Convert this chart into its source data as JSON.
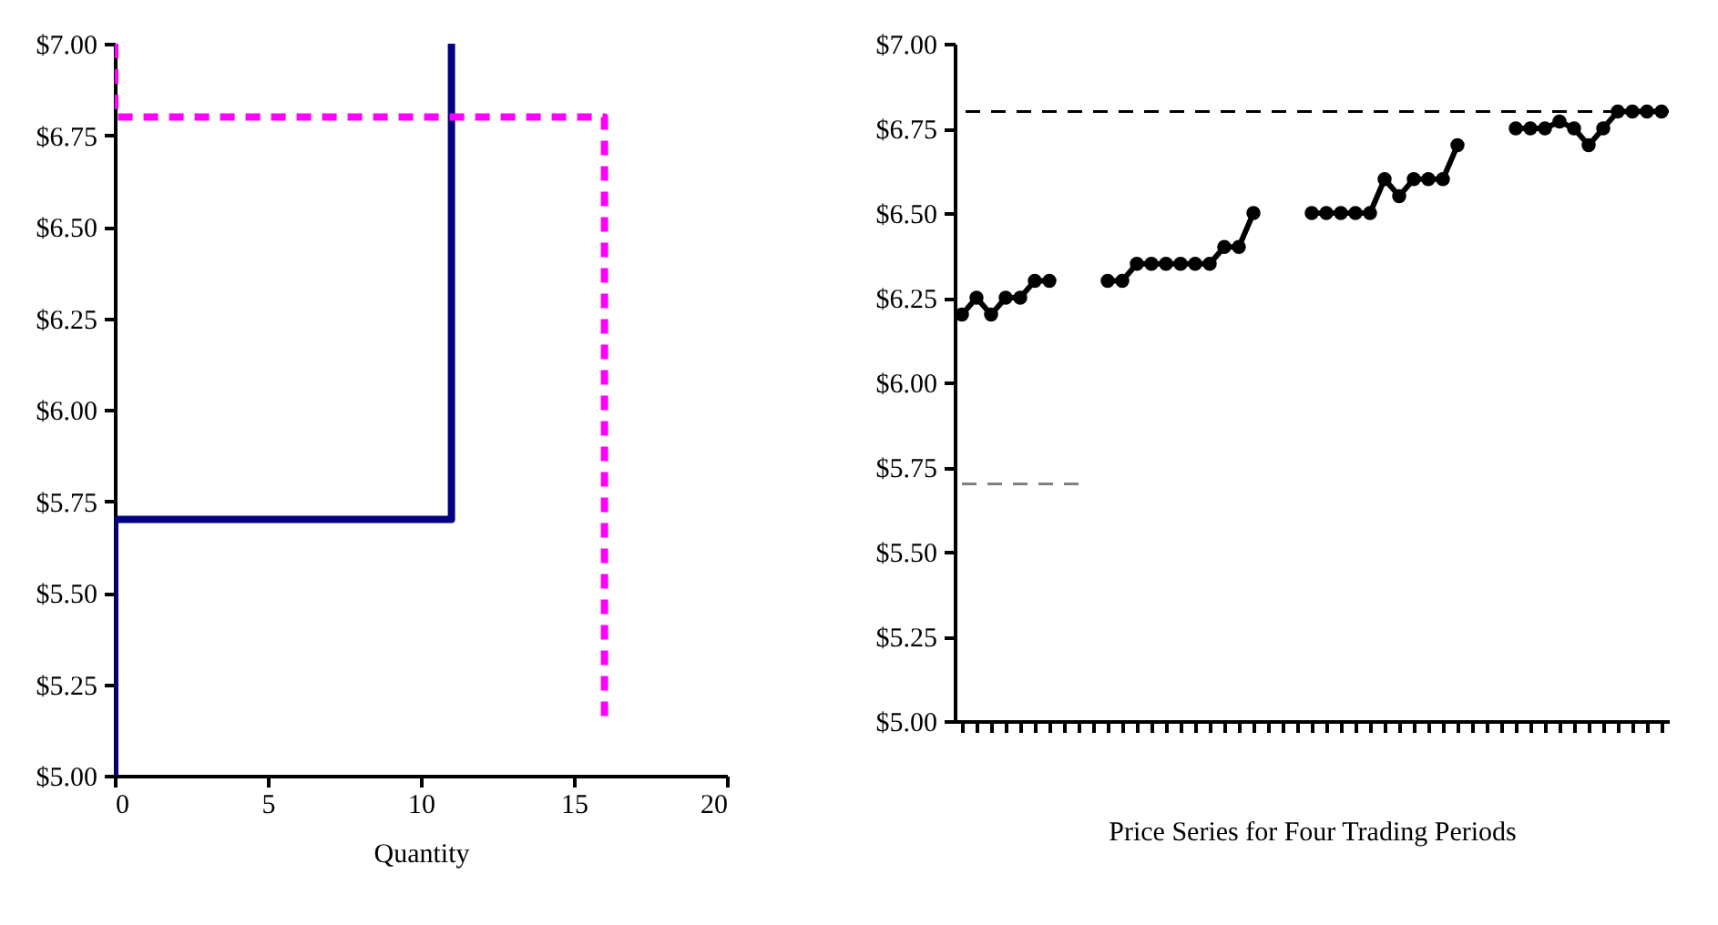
{
  "chart_data": [
    {
      "type": "line",
      "xlabel": "Quantity",
      "xlim": [
        0,
        20
      ],
      "xticks": [
        0,
        5,
        10,
        15,
        20
      ],
      "ylim": [
        5,
        7
      ],
      "yticks": [
        {
          "value": 5,
          "label": "$5.00"
        },
        {
          "value": 5.25,
          "label": "$5.25"
        },
        {
          "value": 5.5,
          "label": "$5.50"
        },
        {
          "value": 5.75,
          "label": "$5.75"
        },
        {
          "value": 6,
          "label": "$6.00"
        },
        {
          "value": 6.25,
          "label": "$6.25"
        },
        {
          "value": 6.5,
          "label": "$6.50"
        },
        {
          "value": 6.75,
          "label": "$6.75"
        },
        {
          "value": 7,
          "label": "$7.00"
        }
      ],
      "series": [
        {
          "color": "#000080",
          "x": [
            0,
            0,
            11,
            11
          ],
          "values": [
            5,
            5.7,
            5.7,
            7
          ],
          "line_style": "solid"
        },
        {
          "color": "#ff00ff",
          "x": [
            0,
            0,
            16,
            16
          ],
          "values": [
            7,
            6.8,
            6.8,
            5.15
          ],
          "line_style": "dashed"
        }
      ]
    },
    {
      "type": "line",
      "xlabel": "Price Series for Four Trading Periods",
      "marker": "circle",
      "categories": [
        null,
        null,
        null,
        null,
        null,
        null,
        null,
        null,
        null,
        null,
        null,
        null,
        null,
        null,
        null,
        null,
        null,
        null,
        null,
        null,
        null,
        null,
        null,
        null,
        null,
        null,
        null,
        null,
        null,
        null,
        null,
        null,
        null,
        null,
        null,
        null,
        null,
        null,
        null,
        null,
        null,
        null,
        null,
        null,
        null,
        null,
        null,
        null,
        null
      ],
      "ylim": [
        5,
        7
      ],
      "yticks": [
        {
          "value": 5,
          "label": "$5.00"
        },
        {
          "value": 5.25,
          "label": "$5.25"
        },
        {
          "value": 5.5,
          "label": "$5.50"
        },
        {
          "value": 5.75,
          "label": "$5.75"
        },
        {
          "value": 6,
          "label": "$6.00"
        },
        {
          "value": 6.25,
          "label": "$6.25"
        },
        {
          "value": 6.5,
          "label": "$6.50"
        },
        {
          "value": 6.75,
          "label": "$6.75"
        },
        {
          "value": 7,
          "label": "$7.00"
        }
      ],
      "ref_lines": [
        {
          "axis": "y",
          "value": 6.8,
          "color": "#000000",
          "line_style": "dashed"
        }
      ],
      "series": [
        {
          "color": "#000000",
          "values": [
            6.2,
            6.25,
            6.2,
            6.25,
            6.25,
            6.3,
            6.3,
            null,
            null,
            null,
            6.3,
            6.3,
            6.35,
            6.35,
            6.35,
            6.35,
            6.35,
            6.35,
            6.4,
            6.4,
            6.5,
            null,
            null,
            null,
            6.5,
            6.5,
            6.5,
            6.5,
            6.5,
            6.6,
            6.55,
            6.6,
            6.6,
            6.6,
            6.7,
            null,
            null,
            null,
            6.75,
            6.75,
            6.75,
            6.77,
            6.75,
            6.7,
            6.75,
            6.8,
            6.8,
            6.8,
            6.8
          ]
        },
        {
          "color": "#808080",
          "marker": "none",
          "line_style": "dashed",
          "values": [
            5.7,
            5.7,
            5.7,
            5.7,
            5.7,
            5.7,
            5.7,
            5.7,
            5.7,
            null,
            null,
            null,
            null,
            null,
            null,
            null,
            null,
            null,
            null,
            null,
            null,
            null,
            null,
            null,
            null,
            null,
            null,
            null,
            null,
            null,
            null,
            null,
            null,
            null,
            null,
            null,
            null,
            null,
            null,
            null,
            null,
            null,
            null,
            null,
            null,
            null,
            null,
            null,
            null
          ]
        }
      ]
    }
  ]
}
